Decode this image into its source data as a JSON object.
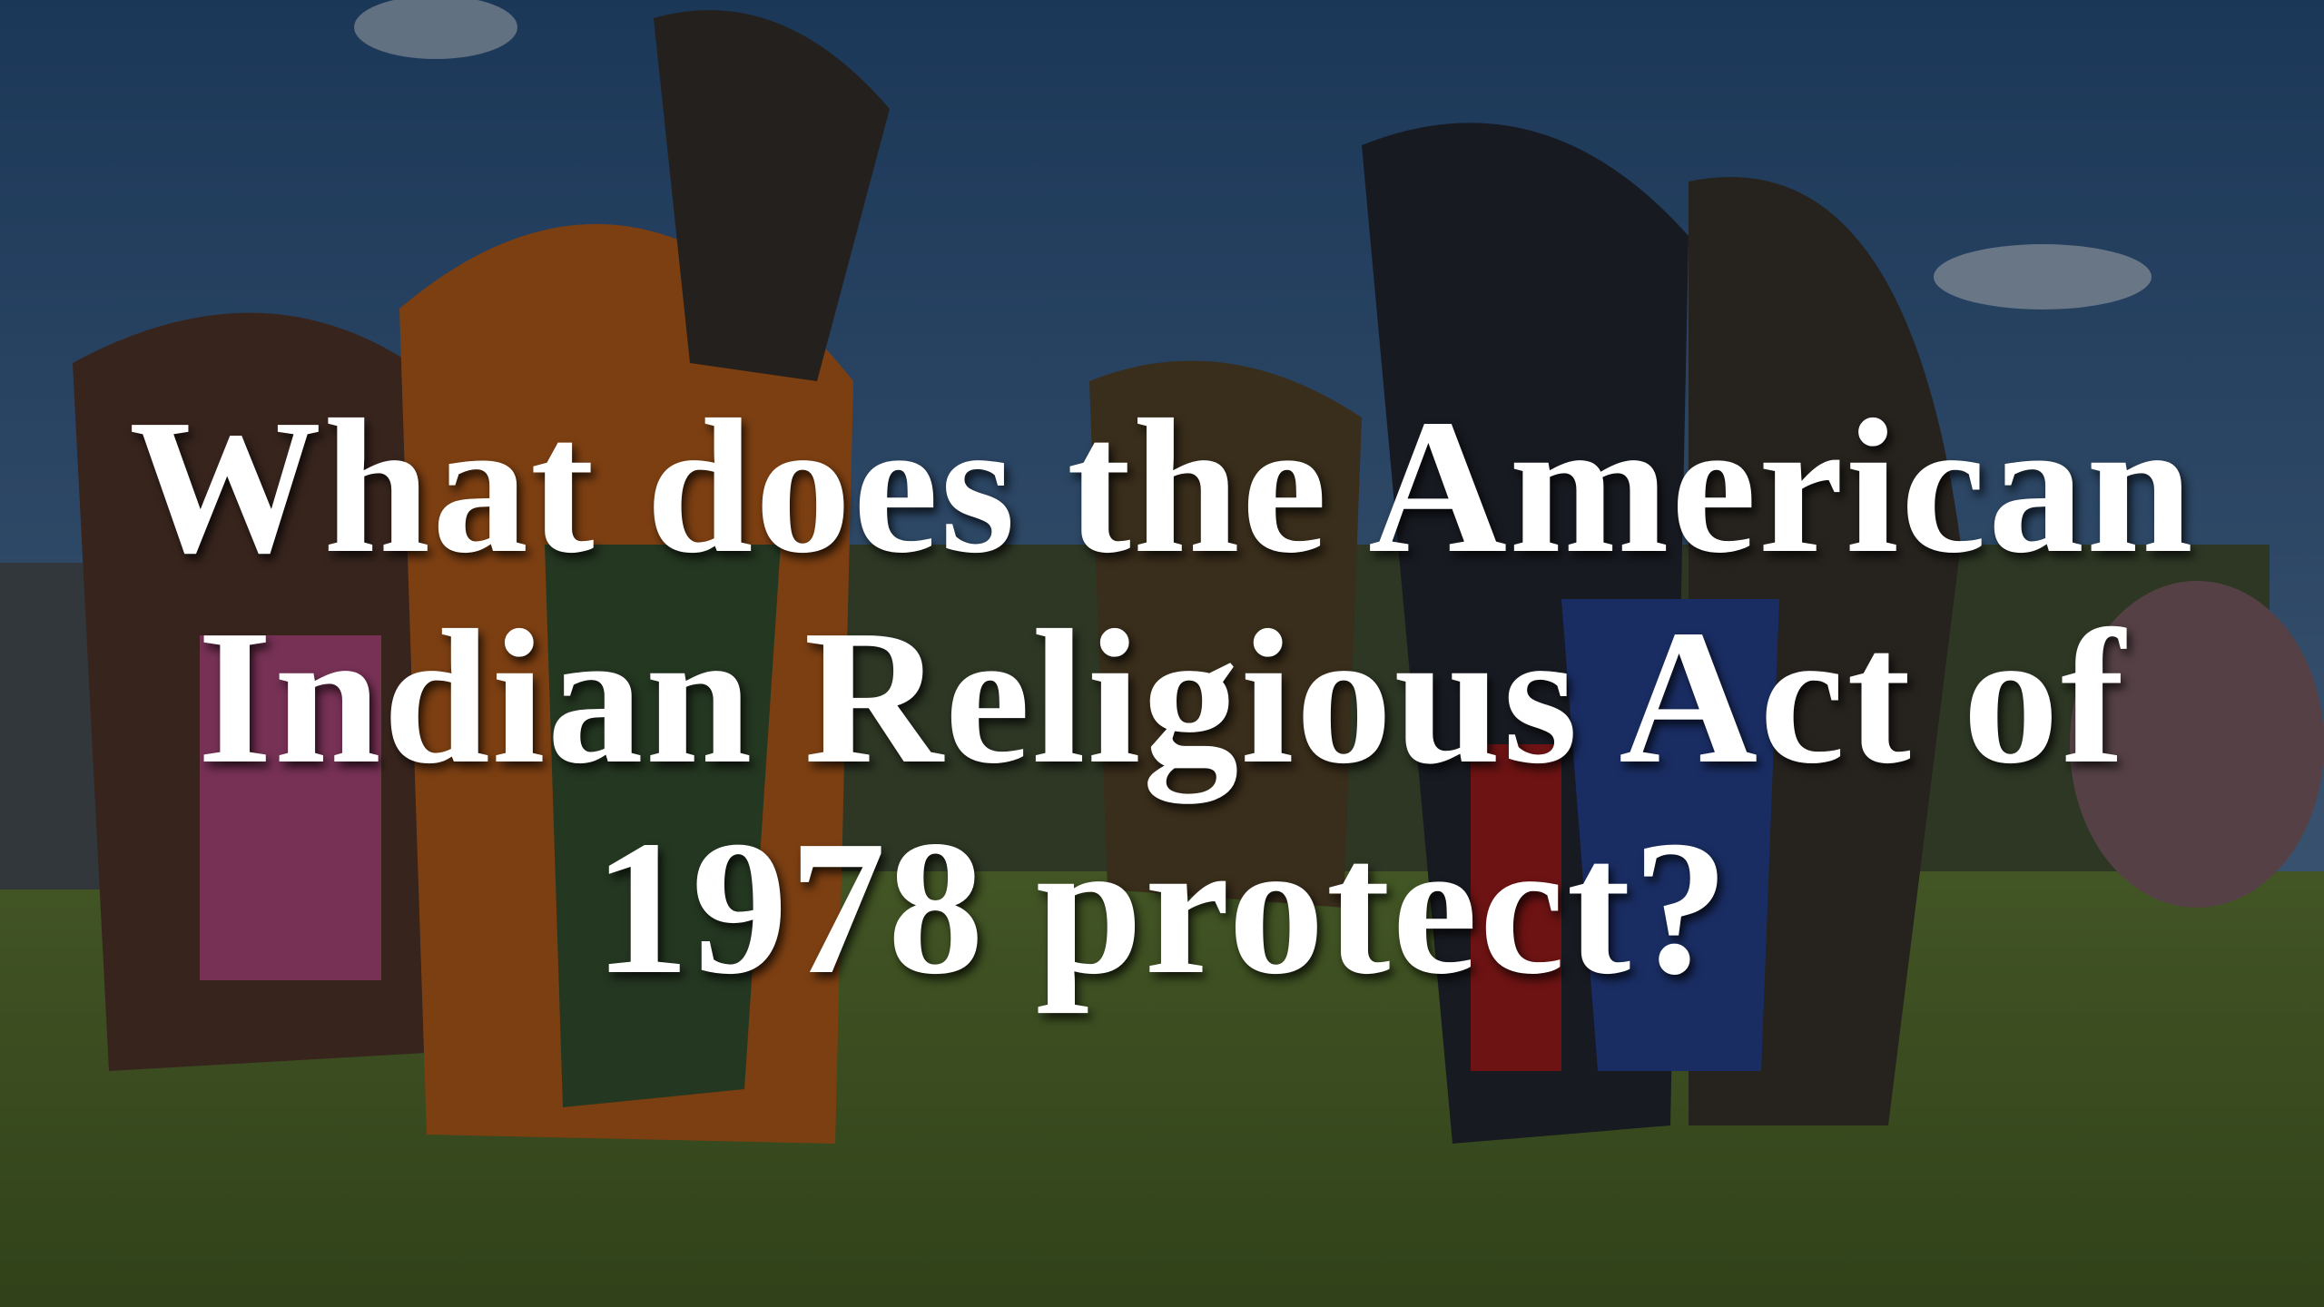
{
  "slide": {
    "title": {
      "lines": [
        "What does the American",
        "Indian Religious Act of",
        "1978 protect?"
      ]
    }
  }
}
